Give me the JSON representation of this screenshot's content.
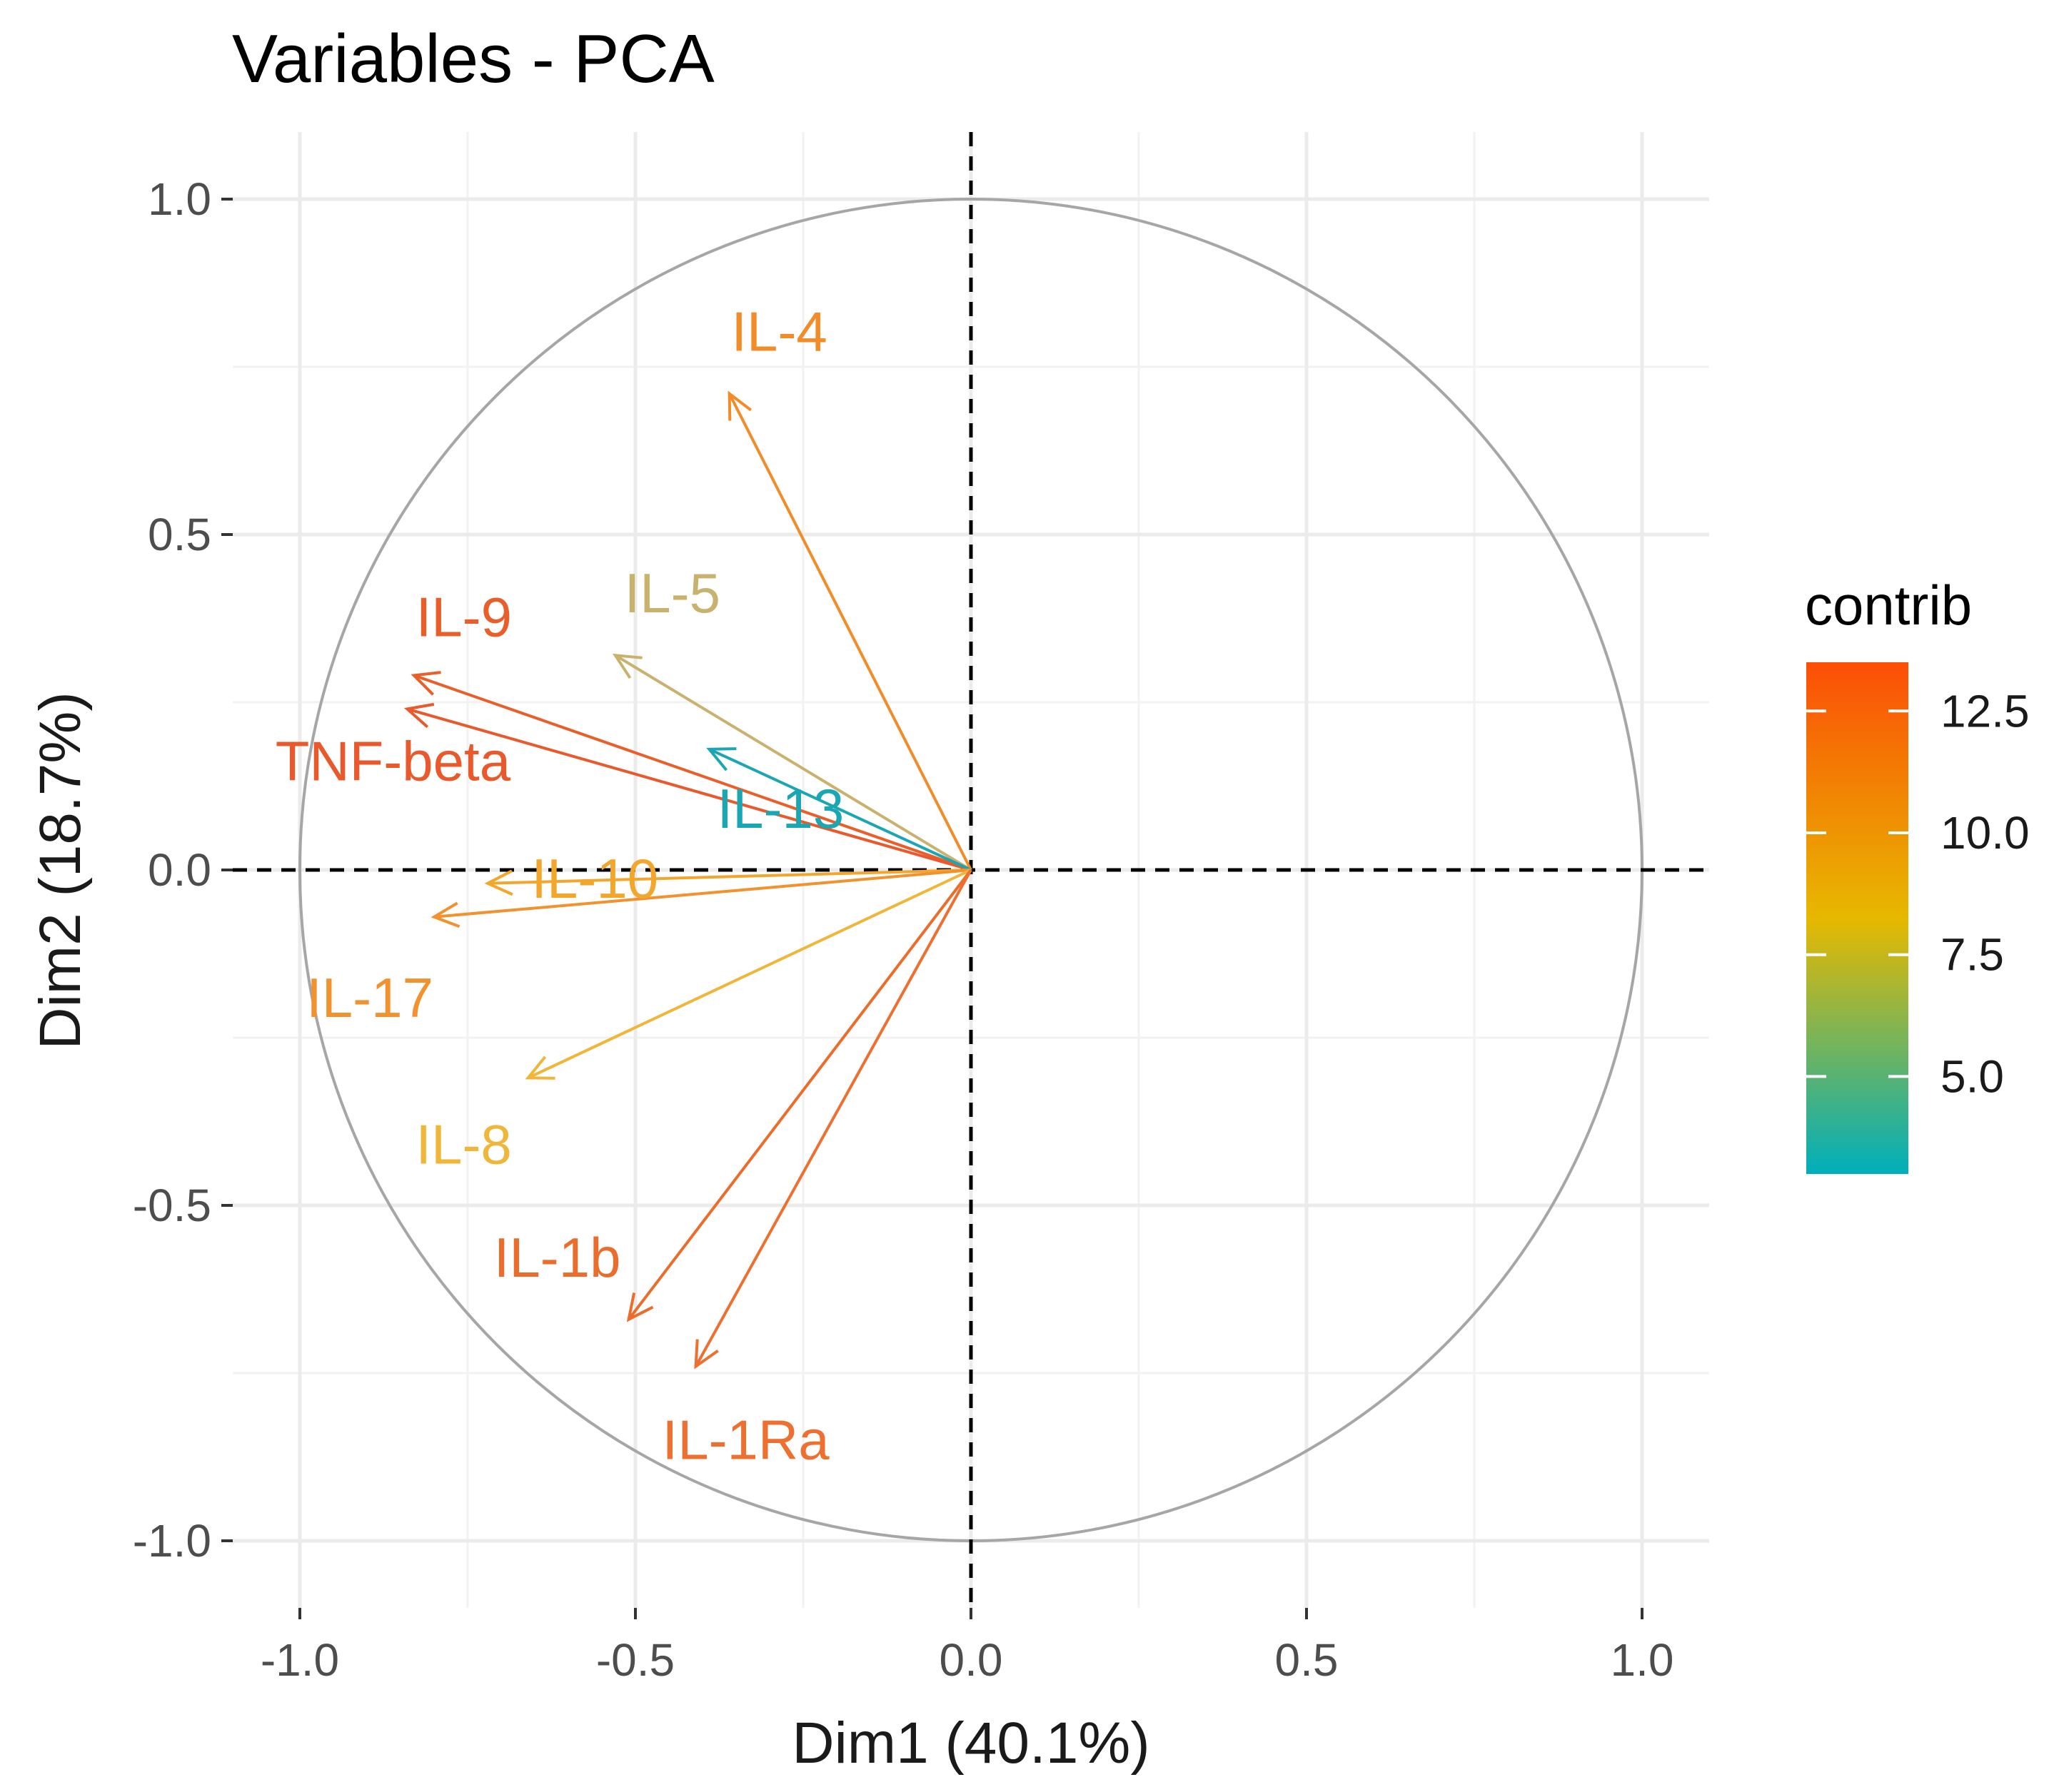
{
  "chart_data": {
    "type": "scatter",
    "subtype": "pca-variable-correlation-circle",
    "title": "Variables - PCA",
    "xlabel": "Dim1 (40.1%)",
    "ylabel": "Dim2 (18.7%)",
    "xlim": [
      -1.1,
      1.1
    ],
    "ylim": [
      -1.1,
      1.0
    ],
    "x_ticks": [
      -1.0,
      -0.5,
      0.0,
      0.5,
      1.0
    ],
    "x_tick_labels": [
      "-1.0",
      "-0.5",
      "0.0",
      "0.5",
      "1.0"
    ],
    "y_ticks": [
      -1.0,
      -0.5,
      0.0,
      0.5,
      1.0
    ],
    "y_tick_labels": [
      "-1.0",
      "-0.5",
      "0.0",
      "0.5",
      "1.0"
    ],
    "grid": true,
    "unit_circle": true,
    "reference_lines": {
      "x": 0,
      "y": 0,
      "style": "dashed"
    },
    "variables": [
      {
        "name": "IL-4",
        "x": -0.36,
        "y": 0.71,
        "contrib": 11.3,
        "color": "#f28c28"
      },
      {
        "name": "IL-5",
        "x": -0.53,
        "y": 0.32,
        "contrib": 7.0,
        "color": "#c9b26e"
      },
      {
        "name": "IL-9",
        "x": -0.83,
        "y": 0.29,
        "contrib": 12.8,
        "color": "#ea5e2a"
      },
      {
        "name": "TNF-beta",
        "x": -0.84,
        "y": 0.24,
        "contrib": 13.0,
        "color": "#e9592c"
      },
      {
        "name": "IL-13",
        "x": -0.39,
        "y": 0.18,
        "contrib": 3.3,
        "color": "#1aa7b3"
      },
      {
        "name": "IL-10",
        "x": -0.72,
        "y": -0.02,
        "contrib": 9.6,
        "color": "#f2a72c"
      },
      {
        "name": "IL-17",
        "x": -0.8,
        "y": -0.07,
        "contrib": 10.9,
        "color": "#f2922e"
      },
      {
        "name": "IL-8",
        "x": -0.66,
        "y": -0.31,
        "contrib": 9.0,
        "color": "#f0b63a"
      },
      {
        "name": "IL-1b",
        "x": -0.51,
        "y": -0.67,
        "contrib": 12.2,
        "color": "#eb6d2c"
      },
      {
        "name": "IL-1Ra",
        "x": -0.41,
        "y": -0.74,
        "contrib": 11.9,
        "color": "#ee7030"
      }
    ],
    "legend": {
      "title": "contrib",
      "placement": "right",
      "type": "colorbar",
      "range": [
        3.0,
        13.5
      ],
      "ticks": [
        5.0,
        7.5,
        10.0,
        12.5
      ],
      "tick_labels": [
        "5.0",
        "7.5",
        "10.0",
        "12.5"
      ],
      "gradient_colors": [
        "#00afbb",
        "#e7b800",
        "#fc4e07"
      ]
    }
  }
}
